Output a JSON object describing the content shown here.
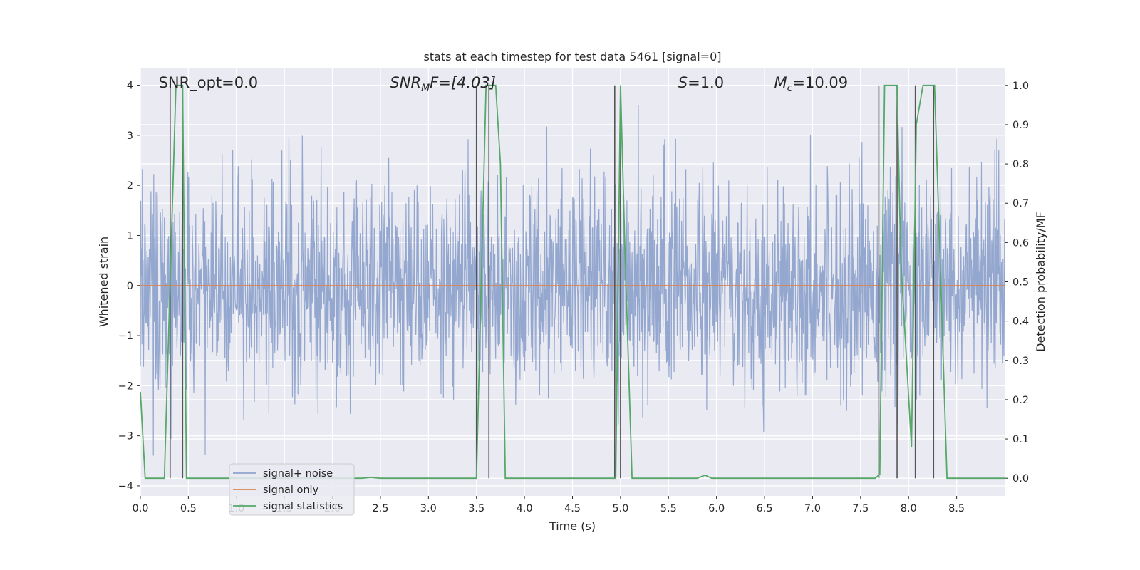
{
  "chart_data": {
    "type": "line",
    "title": "stats at each timestep for test data 5461 [signal=0]",
    "xlabel": "Time (s)",
    "ylabel_left": "Whitened strain",
    "ylabel_right": "Detection probability/MF",
    "xlim": [
      0.0,
      9.0
    ],
    "ylim_left": [
      -4.2,
      4.35
    ],
    "ylim_right": [
      -0.045,
      1.045
    ],
    "x_ticks": [
      "0.0",
      "0.5",
      "1.0",
      "1.5",
      "2.0",
      "2.5",
      "3.0",
      "3.5",
      "4.0",
      "4.5",
      "5.0",
      "5.5",
      "6.0",
      "6.5",
      "7.0",
      "7.5",
      "8.0",
      "8.5"
    ],
    "y_ticks_left": [
      "4",
      "3",
      "2",
      "1",
      "0",
      "−1",
      "−2",
      "−3",
      "−4"
    ],
    "y_ticks_right": [
      "1.0",
      "0.9",
      "0.8",
      "0.7",
      "0.6",
      "0.5",
      "0.4",
      "0.3",
      "0.2",
      "0.1",
      "0.0"
    ],
    "grid": true,
    "legend_position": "lower-left",
    "annotations": {
      "snr_opt": "SNR_opt=0.0",
      "snr_mf_name": "SNR",
      "snr_mf_sub": "M",
      "snr_mf_rest": "F=[4.03]",
      "s_name": "S",
      "s_value": "=1.0",
      "mc_name": "M",
      "mc_sub": "c",
      "mc_value": "=10.09"
    },
    "series": [
      {
        "name": "signal+ noise",
        "color": "#8fa3cc",
        "axis": "left",
        "description_envelope": {
          "typical_range": [
            -1.5,
            1.5
          ],
          "peak_range": [
            -3.5,
            3.6
          ]
        }
      },
      {
        "name": "signal only",
        "color": "#dd8452",
        "axis": "left",
        "x": [
          0.0,
          9.0
        ],
        "y": [
          0.0,
          0.0
        ]
      },
      {
        "name": "signal statistics",
        "color": "#55a868",
        "axis": "right",
        "x": [
          0.0,
          0.05,
          0.25,
          0.37,
          0.44,
          0.48,
          0.6,
          1.0,
          2.3,
          2.4,
          2.5,
          3.5,
          3.6,
          3.7,
          3.75,
          3.8,
          4.9,
          4.95,
          5.0,
          5.05,
          5.12,
          5.4,
          5.8,
          5.88,
          5.95,
          6.5,
          7.65,
          7.7,
          7.75,
          7.88,
          7.92,
          8.03,
          8.08,
          8.15,
          8.27,
          8.4,
          9.0
        ],
        "y": [
          0.22,
          0.0,
          0.0,
          1.0,
          1.0,
          0.0,
          0.0,
          0.0,
          0.0,
          0.002,
          0.0,
          0.0,
          1.0,
          1.0,
          0.8,
          0.0,
          0.0,
          0.0,
          1.0,
          0.55,
          0.0,
          0.0,
          0.0,
          0.008,
          0.0,
          0.0,
          0.0,
          0.01,
          1.0,
          1.0,
          0.55,
          0.08,
          0.9,
          1.0,
          1.0,
          0.0,
          0.0
        ]
      }
    ],
    "vertical_lines_x": [
      0.31,
      0.44,
      3.5,
      3.63,
      4.94,
      5.0,
      7.69,
      7.88,
      8.07,
      8.26
    ],
    "vertical_line_color": "#555555"
  }
}
